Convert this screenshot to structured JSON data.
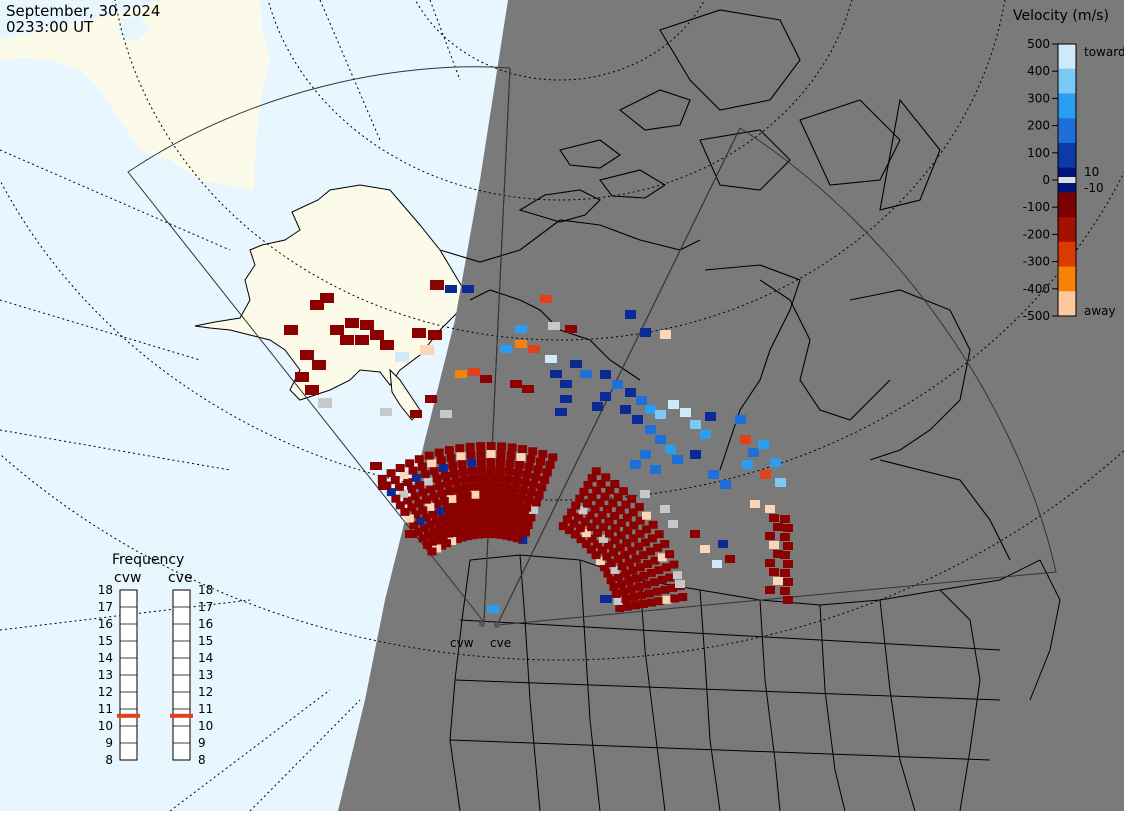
{
  "header": {
    "date": "September, 30 2024",
    "time": "0233:00 UT"
  },
  "colorbar": {
    "title": "Velocity (m/s)",
    "ticks": [
      "500",
      "400",
      "300",
      "200",
      "100",
      "0",
      "-100",
      "-200",
      "-300",
      "-400",
      "-500"
    ],
    "inner_labels": [
      "10",
      "-10"
    ],
    "end_labels": [
      "toward",
      "away"
    ],
    "colors": [
      "#cde9fa",
      "#7dc9f5",
      "#2a9ef0",
      "#1f6fd9",
      "#0c3aa7",
      "#00157a",
      "#7d0000",
      "#a31200",
      "#d93b00",
      "#f7820a",
      "#fbc9a0"
    ]
  },
  "frequency_panel": {
    "title": "Frequency",
    "radars": [
      "cvw",
      "cve"
    ],
    "scale": [
      "18",
      "17",
      "16",
      "15",
      "14",
      "13",
      "12",
      "11",
      "10",
      "9",
      "8"
    ],
    "values_mhz": [
      10.6,
      10.6
    ],
    "marker_color": "#e0401a"
  },
  "map": {
    "radar_sites": [
      "cvw",
      "cve"
    ],
    "land_day_color": "#fcfbea",
    "ocean_day_color": "#e8f6ff",
    "night_color": "#7a7a7a"
  }
}
